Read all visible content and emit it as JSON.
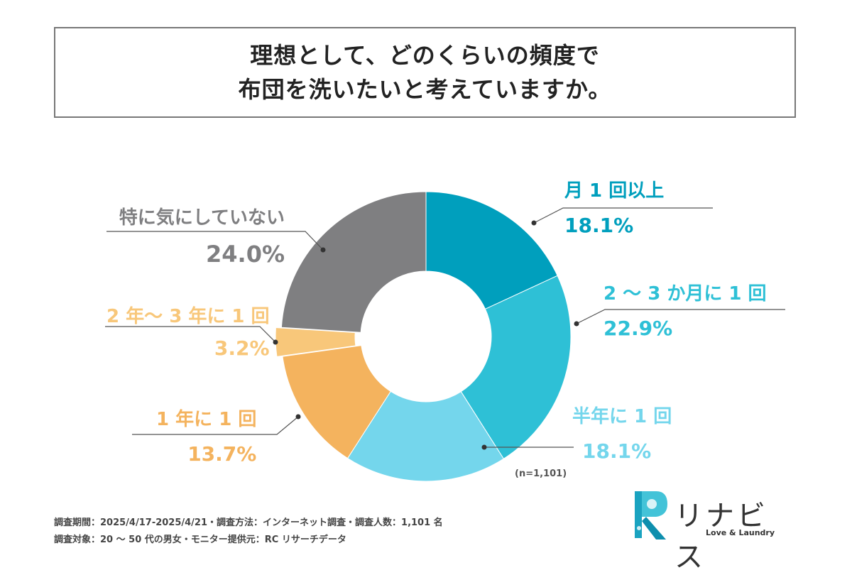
{
  "title": {
    "line1": "理想として、どのくらいの頻度で",
    "line2": "布団を洗いたいと考えていますか。"
  },
  "chart_data": {
    "type": "pie",
    "variant": "donut",
    "slices": [
      {
        "label": "月 1 回以上",
        "value": 18.1,
        "display": "18.1%",
        "color": "#009fbd"
      },
      {
        "label": "2 〜 3 か月に 1 回",
        "value": 22.9,
        "display": "22.9%",
        "color": "#2ec0d6"
      },
      {
        "label": "半年に 1 回",
        "value": 18.1,
        "display": "18.1%",
        "color": "#74d6ec"
      },
      {
        "label": "1 年に 1 回",
        "value": 13.7,
        "display": "13.7%",
        "color": "#f4b35e"
      },
      {
        "label": "2 年〜 3 年に 1 回",
        "value": 3.2,
        "display": "3.2%",
        "color": "#f8c77a"
      },
      {
        "label": "特に気にしていない",
        "value": 24.0,
        "display": "24.0%",
        "color": "#7f7f81"
      }
    ],
    "sample_note": "(n=1,101)"
  },
  "footer": {
    "line1": "調査期間：2025/4/17-2025/4/21・調査方法：インターネット調査・調査人数：1,101 名",
    "line2": "調査対象：20 〜 50 代の男女・モニター提供元：RC リサーチデータ"
  },
  "logo": {
    "text": "リナビス",
    "tagline": "Love & Laundry"
  }
}
